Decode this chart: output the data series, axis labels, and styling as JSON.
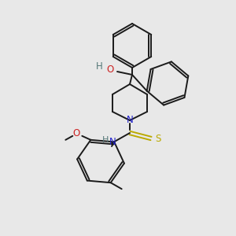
{
  "background_color": "#e8e8e8",
  "bond_color": "#1a1a1a",
  "atom_colors": {
    "N": "#2222cc",
    "O": "#cc2222",
    "S": "#bbaa00",
    "H_label": "#557777",
    "C": "#1a1a1a"
  },
  "fig_width": 3.0,
  "fig_height": 3.0,
  "dpi": 100,
  "lw": 1.4
}
